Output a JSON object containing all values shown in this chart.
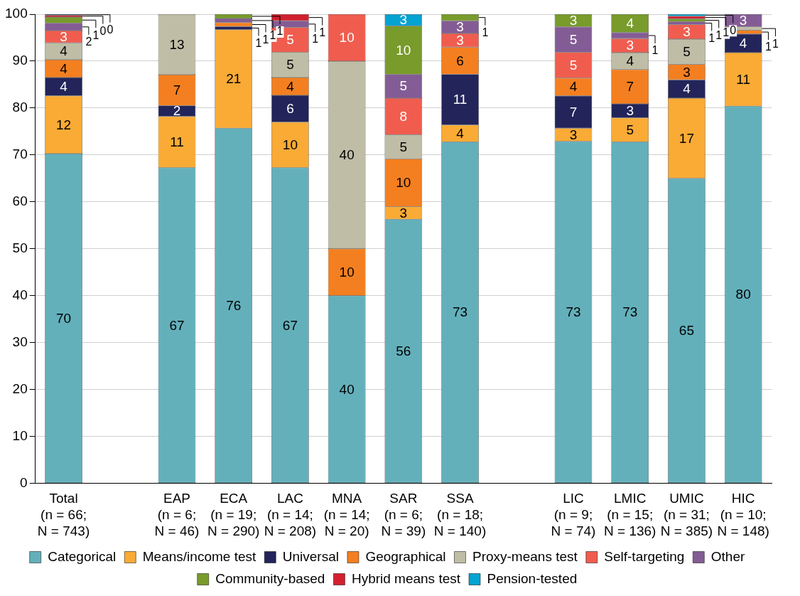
{
  "chart_data": {
    "type": "bar",
    "stacked": true,
    "categories": [
      "Total\n(n = 66;\nN = 743)",
      null,
      "EAP\n(n = 6;\nN = 46)",
      "ECA\n(n = 19;\nN = 290)",
      "LAC\n(n = 14;\nN = 208)",
      "MNA\n(n = 14;\nN = 20)",
      "SAR\n(n = 6;\nN = 39)",
      "SSA\n(n = 18;\nN = 140)",
      null,
      "LIC\n(n = 9;\nN = 74)",
      "LMIC\n(n = 15;\nN = 136)",
      "UMIC\n(n = 31;\nN = 385)",
      "HIC\n(n = 10;\nN = 148)"
    ],
    "series": [
      {
        "name": "Categorical",
        "color": "#63b0bb",
        "values": [
          70.3,
          null,
          67.3,
          75.7,
          67.3,
          40,
          56.3,
          72.8,
          null,
          72.9,
          72.8,
          65.0,
          80.4
        ],
        "value_labels": [
          "70",
          null,
          "67",
          "76",
          "67",
          "40",
          "56",
          "73",
          null,
          "73",
          "73",
          "65",
          "80"
        ]
      },
      {
        "name": "Means/income test",
        "color": "#f9ab35",
        "values": [
          12.3,
          null,
          10.9,
          21.0,
          9.7,
          null,
          2.7,
          3.6,
          null,
          2.8,
          5.1,
          17.1,
          11.4
        ],
        "value_labels": [
          "12",
          null,
          "11",
          "21",
          "10",
          null,
          "3",
          "4",
          null,
          "3",
          "5",
          "17",
          "11"
        ]
      },
      {
        "name": "Universal",
        "color": "#23245a",
        "values": [
          3.9,
          null,
          2.3,
          0.7,
          5.7,
          null,
          null,
          10.8,
          null,
          6.9,
          3.0,
          3.9,
          4.0
        ],
        "value_labels": [
          "4",
          null,
          "2",
          "1",
          "6",
          null,
          null,
          "11",
          null,
          "7",
          "3",
          "4",
          "4"
        ]
      },
      {
        "name": "Geographical",
        "color": "#f47f20",
        "values": [
          3.8,
          null,
          6.6,
          0.8,
          3.8,
          10,
          10.2,
          5.8,
          null,
          3.8,
          7.3,
          3.3,
          0.8
        ],
        "value_labels": [
          "4",
          null,
          "7",
          "1",
          "4",
          "10",
          "10",
          "6",
          null,
          "4",
          "7",
          "3",
          "1"
        ]
      },
      {
        "name": "Proxy-means test",
        "color": "#bfbda6",
        "values": [
          3.6,
          null,
          12.9,
          null,
          5.4,
          40,
          5.1,
          null,
          null,
          null,
          3.6,
          5.4,
          0.7
        ],
        "value_labels": [
          "4",
          null,
          "13",
          null,
          "5",
          "40",
          "5",
          null,
          null,
          null,
          "4",
          "5",
          "1"
        ]
      },
      {
        "name": "Self-targeting",
        "color": "#f05d4f",
        "values": [
          2.6,
          null,
          null,
          null,
          5.3,
          10,
          7.8,
          2.9,
          null,
          5.5,
          3.0,
          3.1,
          null
        ],
        "value_labels": [
          "3",
          null,
          null,
          null,
          "5",
          "10",
          "8",
          "3",
          null,
          "5",
          "3",
          "3",
          null
        ]
      },
      {
        "name": "Other",
        "color": "#845c95",
        "values": [
          1.6,
          null,
          null,
          0.9,
          1.4,
          null,
          5.1,
          2.7,
          null,
          5.4,
          1.3,
          0.6,
          2.7
        ],
        "value_labels": [
          "2",
          null,
          null,
          "1",
          "1",
          null,
          "5",
          "3",
          null,
          "5",
          "1",
          "1",
          "3"
        ]
      },
      {
        "name": "Community-based",
        "color": "#789b2b",
        "values": [
          1.3,
          null,
          null,
          0.9,
          null,
          null,
          10.3,
          1.4,
          null,
          2.7,
          3.9,
          0.6,
          null
        ],
        "value_labels": [
          "1",
          null,
          null,
          "1",
          null,
          null,
          "10",
          "1",
          null,
          "3",
          "4",
          "1",
          null
        ]
      },
      {
        "name": "Hybrid means test",
        "color": "#d2202f",
        "values": [
          0.4,
          null,
          null,
          null,
          1.4,
          null,
          null,
          null,
          null,
          null,
          null,
          0.6,
          null
        ],
        "value_labels": [
          "0",
          null,
          null,
          null,
          "1",
          null,
          null,
          null,
          null,
          null,
          null,
          "1",
          null
        ]
      },
      {
        "name": "Pension-tested",
        "color": "#04a3d1",
        "values": [
          0.2,
          null,
          null,
          null,
          null,
          null,
          2.5,
          null,
          null,
          null,
          null,
          0.4,
          null
        ],
        "value_labels": [
          "0",
          null,
          null,
          null,
          null,
          null,
          "3",
          null,
          null,
          null,
          null,
          "0",
          null
        ]
      }
    ],
    "ylim": [
      0,
      100
    ],
    "yticks": [
      0,
      10,
      20,
      30,
      40,
      50,
      60,
      70,
      80,
      90,
      100
    ],
    "grid": "y",
    "legend": "bottom"
  }
}
